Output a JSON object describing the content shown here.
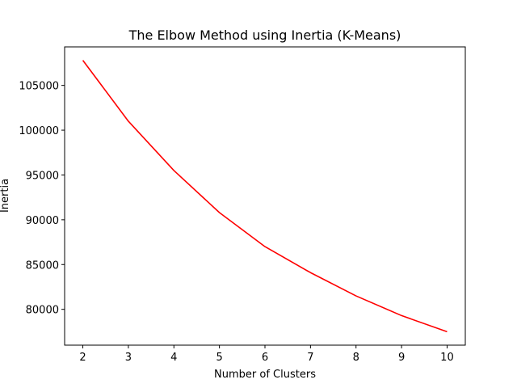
{
  "chart_data": {
    "type": "line",
    "title": "The Elbow Method using Inertia (K-Means)",
    "xlabel": "Number of Clusters",
    "ylabel": "Inertia",
    "x": [
      2,
      3,
      4,
      5,
      6,
      7,
      8,
      9,
      10
    ],
    "series": [
      {
        "values": [
          107800,
          101000,
          95500,
          90800,
          87000,
          84100,
          81500,
          79300,
          77500
        ]
      }
    ],
    "xlim": [
      1.6,
      10.4
    ],
    "ylim": [
      76000,
      109300
    ],
    "xticks": [
      2,
      3,
      4,
      5,
      6,
      7,
      8,
      9,
      10
    ],
    "yticks": [
      80000,
      85000,
      90000,
      95000,
      100000,
      105000
    ],
    "grid": false,
    "line_color": "#ff0000"
  }
}
